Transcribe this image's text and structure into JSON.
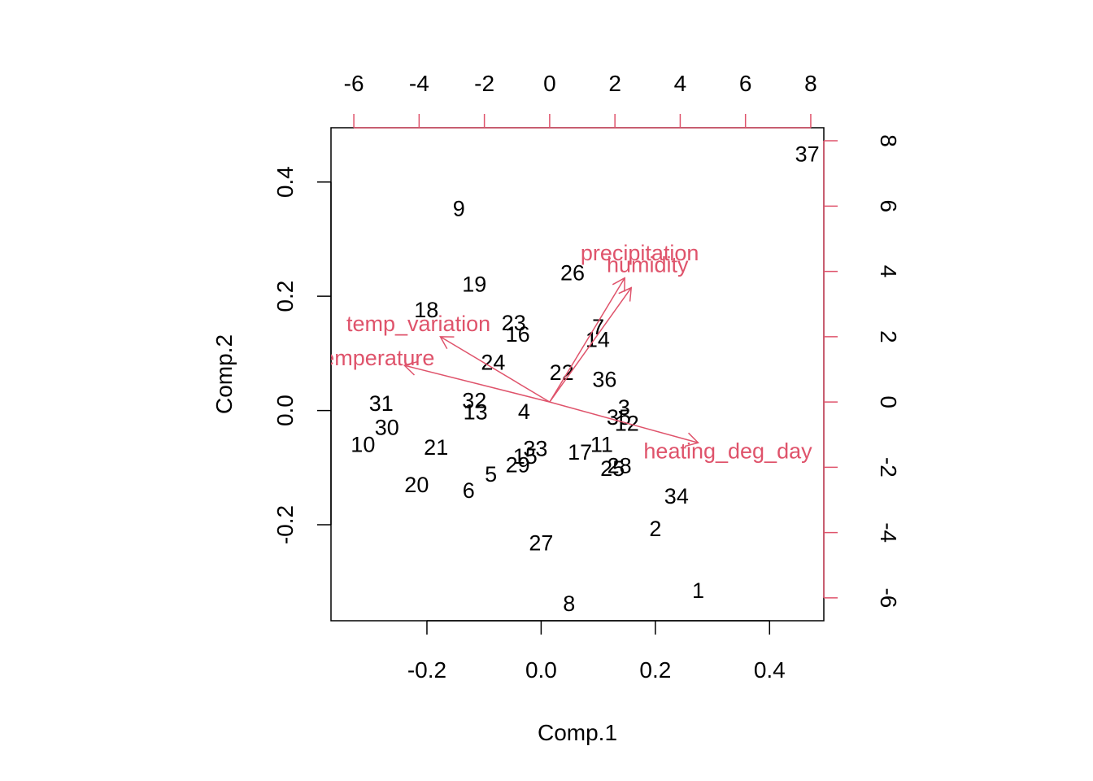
{
  "chart_data": {
    "type": "scatter",
    "subtype": "biplot",
    "title": "",
    "xlabel": "Comp.1",
    "ylabel": "Comp.2",
    "xlim": [
      -0.368,
      0.495
    ],
    "ylim": [
      -0.368,
      0.495
    ],
    "x_ticks": [
      -0.2,
      0.0,
      0.2,
      0.4
    ],
    "x_tick_labels": [
      "-0.2",
      "0.0",
      "0.2",
      "0.4"
    ],
    "y_ticks": [
      -0.2,
      0.0,
      0.2,
      0.4
    ],
    "y_tick_labels": [
      "-0.2",
      "0.0",
      "0.2",
      "0.4"
    ],
    "loading_scale_lim": [
      -6.7,
      8.4
    ],
    "top_ticks": [
      -6,
      -4,
      -2,
      0,
      2,
      4,
      6,
      8
    ],
    "top_tick_labels": [
      "-6",
      "-4",
      "-2",
      "0",
      "2",
      "4",
      "6",
      "8"
    ],
    "right_ticks": [
      -6,
      -4,
      -2,
      0,
      2,
      4,
      6,
      8
    ],
    "right_tick_labels": [
      "-6",
      "-4",
      "-2",
      "0",
      "2",
      "4",
      "6",
      "8"
    ],
    "grid": false,
    "colors": {
      "points": "#000000",
      "loadings": "#DF536B",
      "axes": "#000000"
    },
    "points": [
      {
        "label": "1",
        "x": 0.275,
        "y": -0.315
      },
      {
        "label": "2",
        "x": 0.2,
        "y": -0.207
      },
      {
        "label": "3",
        "x": 0.145,
        "y": 0.005
      },
      {
        "label": "4",
        "x": -0.03,
        "y": -0.002
      },
      {
        "label": "5",
        "x": -0.088,
        "y": -0.112
      },
      {
        "label": "6",
        "x": -0.127,
        "y": -0.14
      },
      {
        "label": "7",
        "x": 0.1,
        "y": 0.146
      },
      {
        "label": "8",
        "x": 0.049,
        "y": -0.338
      },
      {
        "label": "9",
        "x": -0.144,
        "y": 0.353
      },
      {
        "label": "10",
        "x": -0.312,
        "y": -0.06
      },
      {
        "label": "11",
        "x": 0.106,
        "y": -0.06
      },
      {
        "label": "12",
        "x": 0.15,
        "y": -0.023
      },
      {
        "label": "13",
        "x": -0.115,
        "y": -0.003
      },
      {
        "label": "14",
        "x": 0.099,
        "y": 0.124
      },
      {
        "label": "15",
        "x": -0.028,
        "y": -0.08
      },
      {
        "label": "16",
        "x": -0.041,
        "y": 0.133
      },
      {
        "label": "17",
        "x": 0.068,
        "y": -0.073
      },
      {
        "label": "18",
        "x": -0.201,
        "y": 0.176
      },
      {
        "label": "19",
        "x": -0.117,
        "y": 0.221
      },
      {
        "label": "20",
        "x": -0.218,
        "y": -0.13
      },
      {
        "label": "21",
        "x": -0.184,
        "y": -0.065
      },
      {
        "label": "22",
        "x": 0.036,
        "y": 0.066
      },
      {
        "label": "23",
        "x": -0.048,
        "y": 0.153
      },
      {
        "label": "24",
        "x": -0.084,
        "y": 0.084
      },
      {
        "label": "25",
        "x": 0.125,
        "y": -0.102
      },
      {
        "label": "26",
        "x": 0.055,
        "y": 0.241
      },
      {
        "label": "27",
        "x": 0.0,
        "y": -0.232
      },
      {
        "label": "28",
        "x": 0.137,
        "y": -0.097
      },
      {
        "label": "29",
        "x": -0.041,
        "y": -0.095
      },
      {
        "label": "30",
        "x": -0.27,
        "y": -0.03
      },
      {
        "label": "31",
        "x": -0.28,
        "y": 0.012
      },
      {
        "label": "32",
        "x": -0.117,
        "y": 0.017
      },
      {
        "label": "33",
        "x": -0.01,
        "y": -0.067
      },
      {
        "label": "34",
        "x": 0.237,
        "y": -0.15
      },
      {
        "label": "35",
        "x": 0.136,
        "y": -0.012
      },
      {
        "label": "36",
        "x": 0.111,
        "y": 0.054
      },
      {
        "label": "37",
        "x": 0.466,
        "y": 0.449
      }
    ],
    "loadings": [
      {
        "label": "temperature",
        "x": -4.45,
        "y": 1.12
      },
      {
        "label": "temp_variation",
        "x": -3.35,
        "y": 2.0
      },
      {
        "label": "precipitation",
        "x": 2.3,
        "y": 3.8
      },
      {
        "label": "humidity",
        "x": 2.5,
        "y": 3.5
      },
      {
        "label": "heating_deg_day",
        "x": 4.55,
        "y": -1.25
      }
    ]
  }
}
